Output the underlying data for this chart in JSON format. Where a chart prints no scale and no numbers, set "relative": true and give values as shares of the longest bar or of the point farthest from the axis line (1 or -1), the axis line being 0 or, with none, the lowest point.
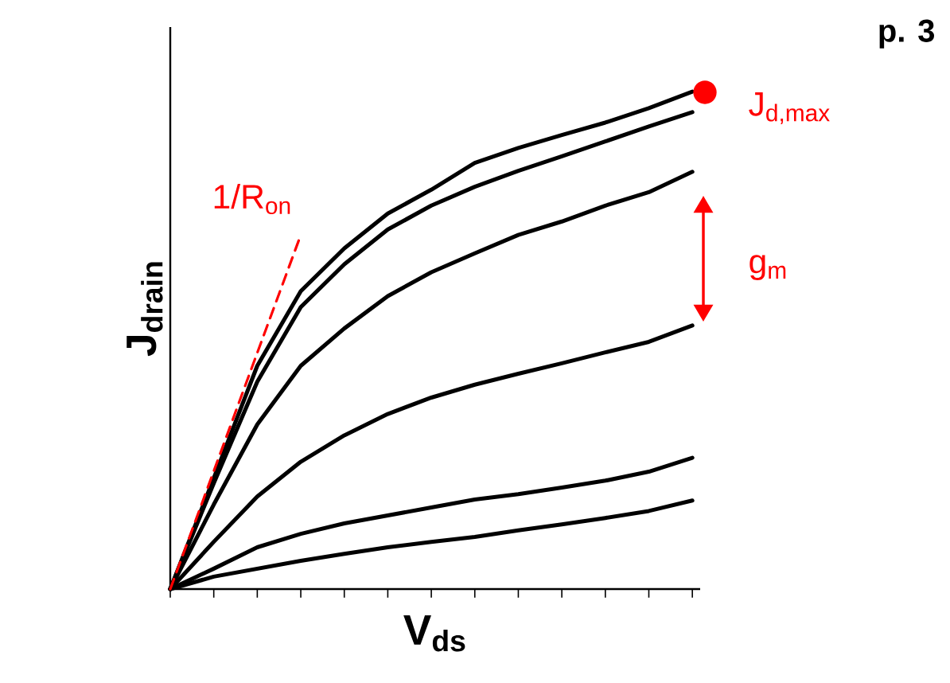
{
  "chart_data": {
    "type": "line",
    "relative": true,
    "xlabel": "V$_{ds}$",
    "ylabel": "J$_{drain}$",
    "marker": "none",
    "categories": [
      null,
      null,
      null,
      null,
      null,
      null,
      null,
      null,
      null,
      null,
      null,
      null,
      null
    ],
    "series": [
      {
        "color": "#000000",
        "values": [
          0,
          0.223,
          0.449,
          0.599,
          0.685,
          0.755,
          0.803,
          0.857,
          0.887,
          0.913,
          0.938,
          0.967,
          1
        ]
      },
      {
        "color": "#000000",
        "values": [
          0,
          0.213,
          0.417,
          0.567,
          0.653,
          0.723,
          0.771,
          0.809,
          0.841,
          0.87,
          0.9,
          0.93,
          0.959
        ]
      },
      {
        "color": "#000000",
        "values": [
          0,
          0.17,
          0.331,
          0.449,
          0.524,
          0.589,
          0.637,
          0.675,
          0.712,
          0.739,
          0.771,
          0.798,
          0.839
        ]
      },
      {
        "color": "#000000",
        "values": [
          0,
          0.095,
          0.186,
          0.256,
          0.309,
          0.352,
          0.385,
          0.411,
          0.433,
          0.454,
          0.476,
          0.497,
          0.53
        ]
      },
      {
        "color": "#000000",
        "values": [
          0,
          0.041,
          0.084,
          0.111,
          0.132,
          0.148,
          0.164,
          0.18,
          0.191,
          0.204,
          0.218,
          0.236,
          0.264
        ]
      },
      {
        "color": "#000000",
        "values": [
          0,
          0.025,
          0.041,
          0.057,
          0.071,
          0.084,
          0.095,
          0.105,
          0.118,
          0.13,
          0.143,
          0.157,
          0.178
        ]
      },
      {
        "name": "1/R$_{on}$",
        "color": "#ff0000",
        "line_style": "dashed",
        "values": [
          0,
          0.237,
          0.475,
          0.712,
          null,
          null,
          null,
          null,
          null,
          null,
          null,
          null,
          null
        ]
      }
    ],
    "annotations": [
      "J$_{d,max}$",
      "g$_{m}$",
      "p. 3"
    ]
  }
}
